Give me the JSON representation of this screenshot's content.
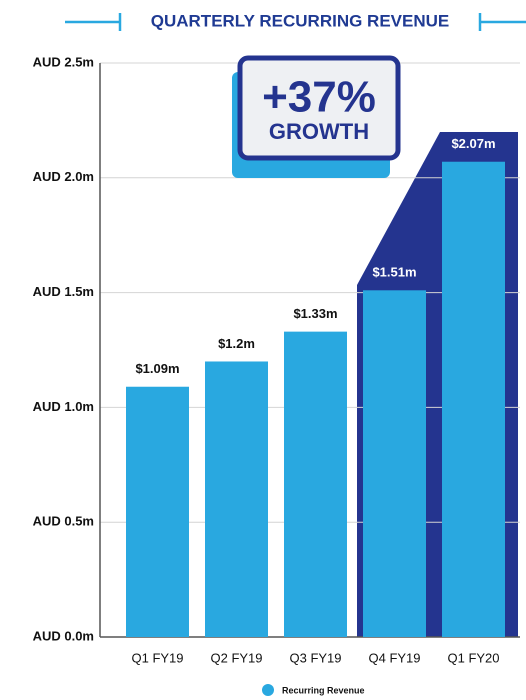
{
  "chart_data": {
    "type": "bar",
    "title": "QUARTERLY RECURRING REVENUE",
    "categories": [
      "Q1 FY19",
      "Q2 FY19",
      "Q3 FY19",
      "Q4 FY19",
      "Q1 FY20"
    ],
    "series": [
      {
        "name": "Recurring Revenue",
        "color": "#29a8e0",
        "values": [
          1.09,
          1.2,
          1.33,
          1.51,
          2.07
        ],
        "value_labels": [
          "$1.09m",
          "$1.2m",
          "$1.33m",
          "$1.51m",
          "$2.07m"
        ]
      }
    ],
    "ylim": [
      0,
      2.5
    ],
    "yticks": [
      {
        "value": 0,
        "label": "AUD 0.0m"
      },
      {
        "value": 0.5,
        "label": "AUD 0.5m"
      },
      {
        "value": 1,
        "label": "AUD 1.0m"
      },
      {
        "value": 1.5,
        "label": "AUD 1.5m"
      },
      {
        "value": 2,
        "label": "AUD 2.0m"
      },
      {
        "value": 2.5,
        "label": "AUD 2.5m"
      }
    ],
    "grid": true,
    "annotations": [
      "+37%",
      "GROWTH"
    ],
    "legend": "bottom"
  }
}
